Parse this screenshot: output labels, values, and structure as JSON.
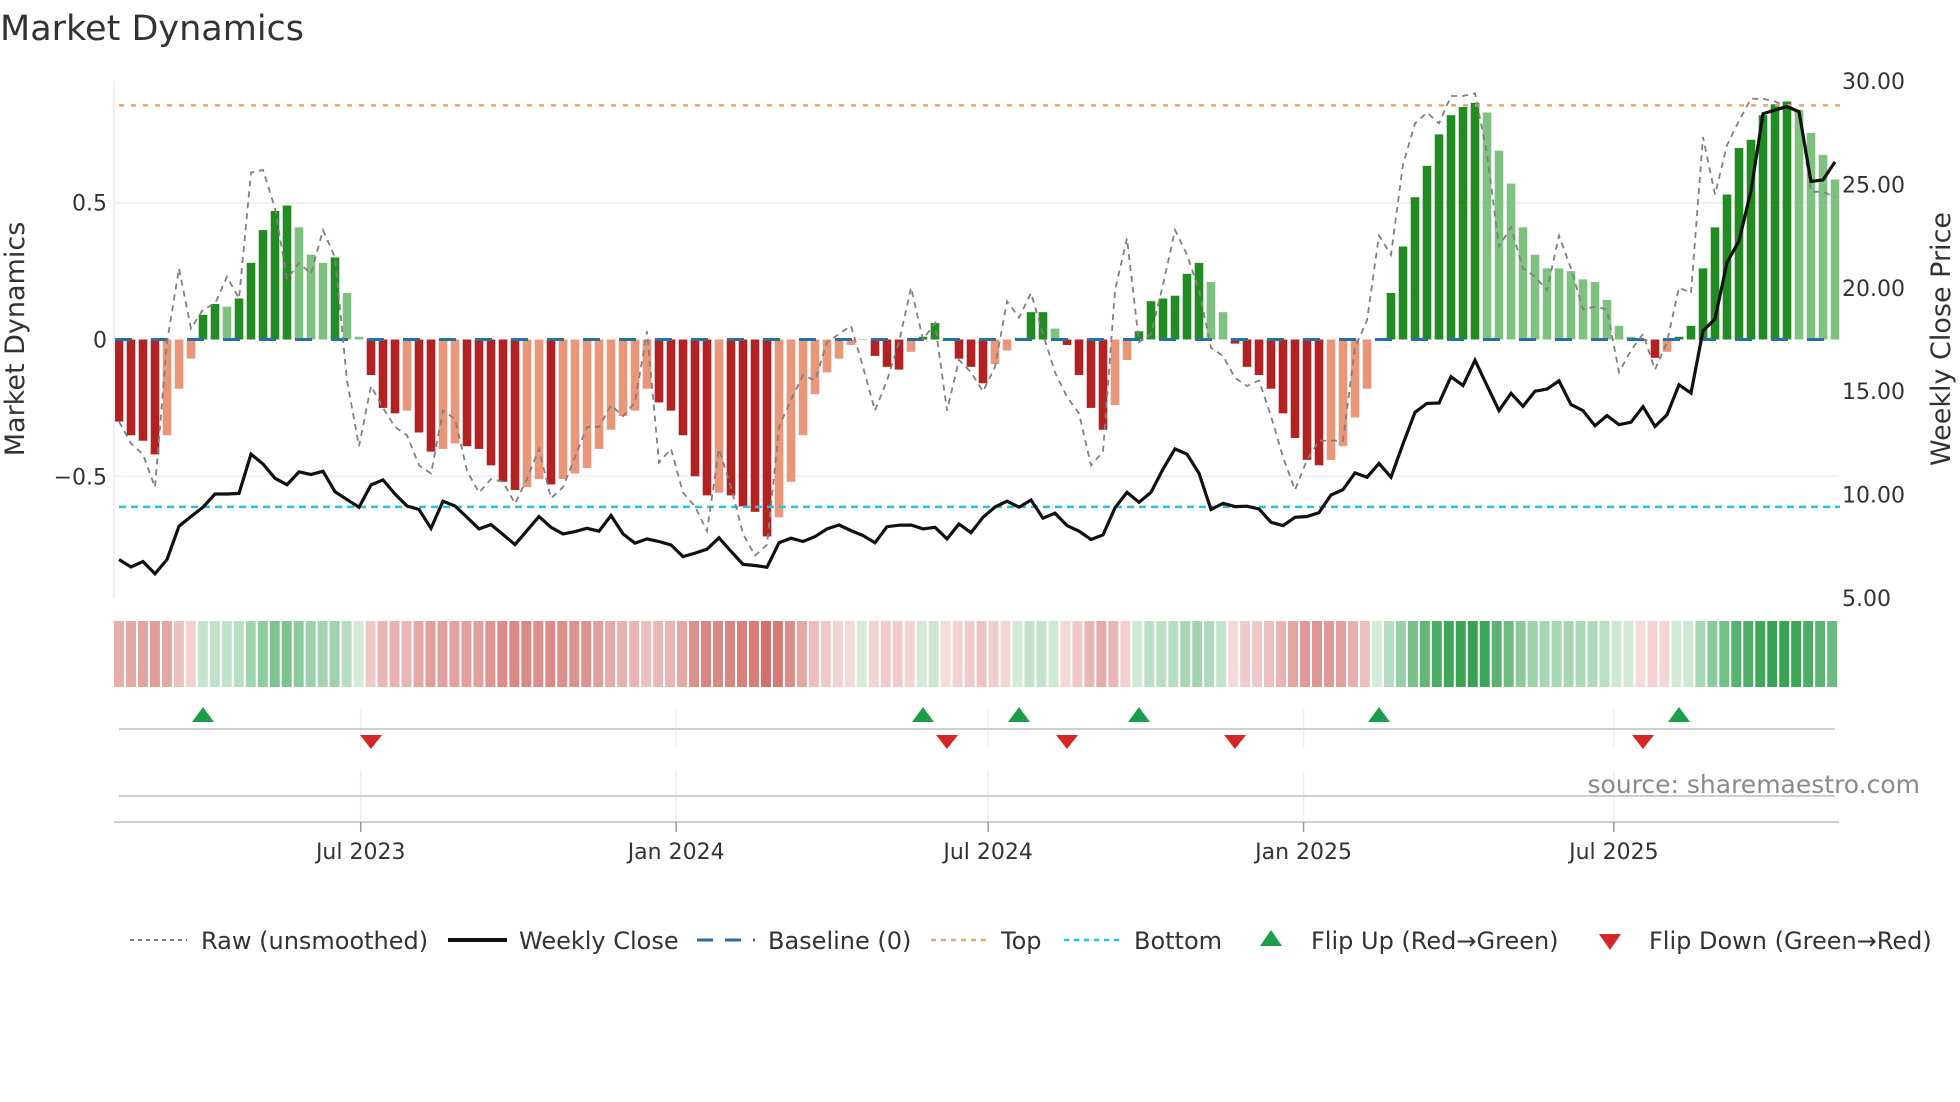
{
  "chart_data": {
    "type": "bar",
    "title": "Market Dynamics",
    "ylabel_left": "Market Dynamics",
    "ylabel_right": "Weekly Close Price",
    "start_date": "2023-02-10",
    "interval": "weekly",
    "ylim_left": [
      -0.945,
      0.945
    ],
    "ylim_right": [
      5,
      30
    ],
    "left_ticks": [
      {
        "value": 0.5,
        "label": "0.5"
      },
      {
        "value": 0,
        "label": "0"
      },
      {
        "value": -0.5,
        "label": "−0.5"
      }
    ],
    "right_ticks": [
      {
        "value": 30,
        "label": "30.00"
      },
      {
        "value": 25,
        "label": "25.00"
      },
      {
        "value": 20,
        "label": "20.00"
      },
      {
        "value": 15,
        "label": "15.00"
      },
      {
        "value": 10,
        "label": "10.00"
      },
      {
        "value": 5,
        "label": "5.00"
      }
    ],
    "x_ticks": [
      {
        "date": "2023-07-01",
        "label": "Jul 2023"
      },
      {
        "date": "2024-01-01",
        "label": "Jan 2024"
      },
      {
        "date": "2024-07-01",
        "label": "Jul 2024"
      },
      {
        "date": "2025-01-01",
        "label": "Jan 2025"
      },
      {
        "date": "2025-07-01",
        "label": "Jul 2025"
      }
    ],
    "grid": true,
    "thresholds": {
      "baseline": 0,
      "top": 0.856,
      "bottom": -0.612
    },
    "smoothed": [
      -0.3,
      -0.35,
      -0.37,
      -0.42,
      -0.35,
      -0.18,
      -0.07,
      0.09,
      0.13,
      0.12,
      0.15,
      0.28,
      0.4,
      0.47,
      0.49,
      0.41,
      0.31,
      0.28,
      0.3,
      0.17,
      0.01,
      -0.13,
      -0.25,
      -0.27,
      -0.26,
      -0.34,
      -0.41,
      -0.4,
      -0.38,
      -0.39,
      -0.4,
      -0.46,
      -0.52,
      -0.55,
      -0.54,
      -0.51,
      -0.53,
      -0.51,
      -0.49,
      -0.47,
      -0.4,
      -0.33,
      -0.28,
      -0.26,
      -0.18,
      -0.23,
      -0.26,
      -0.35,
      -0.5,
      -0.57,
      -0.56,
      -0.57,
      -0.61,
      -0.63,
      -0.72,
      -0.65,
      -0.52,
      -0.35,
      -0.2,
      -0.12,
      -0.07,
      -0.02,
      0,
      -0.06,
      -0.1,
      -0.11,
      -0.045,
      0.01,
      0.06,
      -0.005,
      -0.07,
      -0.1,
      -0.16,
      -0.09,
      -0.04,
      0.006,
      0.1,
      0.1,
      0.04,
      -0.02,
      -0.13,
      -0.25,
      -0.33,
      -0.24,
      -0.075,
      0.03,
      0.14,
      0.15,
      0.16,
      0.24,
      0.28,
      0.21,
      0.1,
      -0.015,
      -0.1,
      -0.13,
      -0.18,
      -0.27,
      -0.36,
      -0.44,
      -0.46,
      -0.44,
      -0.39,
      -0.285,
      -0.18,
      0.005,
      0.17,
      0.34,
      0.52,
      0.635,
      0.75,
      0.82,
      0.85,
      0.865,
      0.83,
      0.69,
      0.57,
      0.41,
      0.31,
      0.26,
      0.26,
      0.25,
      0.22,
      0.21,
      0.145,
      0.05,
      0.01,
      -0.005,
      -0.067,
      -0.045,
      0.01,
      0.05,
      0.26,
      0.41,
      0.53,
      0.7,
      0.73,
      0.82,
      0.86,
      0.87,
      0.84,
      0.755,
      0.675,
      0.585
    ],
    "strengthening": [
      1,
      1,
      1,
      1,
      0,
      0,
      0,
      1,
      1,
      0,
      1,
      1,
      1,
      1,
      1,
      0,
      0,
      0,
      1,
      0,
      0,
      1,
      1,
      1,
      0,
      1,
      1,
      0,
      0,
      1,
      1,
      1,
      1,
      1,
      0,
      0,
      1,
      0,
      0,
      0,
      0,
      0,
      0,
      0,
      0,
      1,
      1,
      1,
      1,
      1,
      0,
      1,
      1,
      1,
      1,
      0,
      0,
      0,
      0,
      0,
      0,
      0,
      0,
      1,
      1,
      1,
      0,
      1,
      1,
      1,
      1,
      1,
      1,
      0,
      0,
      1,
      1,
      1,
      0,
      1,
      1,
      1,
      1,
      0,
      0,
      1,
      1,
      1,
      1,
      1,
      1,
      0,
      0,
      1,
      1,
      1,
      1,
      1,
      1,
      1,
      1,
      0,
      0,
      0,
      0,
      1,
      1,
      1,
      1,
      1,
      1,
      1,
      1,
      1,
      0,
      0,
      0,
      0,
      0,
      0,
      0,
      0,
      0,
      0,
      0,
      0,
      0,
      1,
      1,
      0,
      1,
      1,
      1,
      1,
      1,
      1,
      1,
      1,
      1,
      1,
      0,
      0,
      0,
      0
    ],
    "raw": [
      -0.3,
      -0.38,
      -0.42,
      -0.54,
      -0.01,
      0.26,
      0.04,
      0.11,
      0.13,
      0.23,
      0.15,
      0.61,
      0.62,
      0.48,
      0.22,
      0.28,
      0.24,
      0.4,
      0.3,
      -0.15,
      -0.39,
      -0.17,
      -0.25,
      -0.32,
      -0.35,
      -0.46,
      -0.49,
      -0.26,
      -0.29,
      -0.48,
      -0.56,
      -0.51,
      -0.52,
      -0.6,
      -0.51,
      -0.4,
      -0.58,
      -0.54,
      -0.43,
      -0.32,
      -0.32,
      -0.24,
      -0.28,
      -0.23,
      0.03,
      -0.45,
      -0.4,
      -0.56,
      -0.61,
      -0.7,
      -0.4,
      -0.54,
      -0.71,
      -0.79,
      -0.75,
      -0.32,
      -0.22,
      -0.13,
      -0.15,
      -0.01,
      0.02,
      0.05,
      -0.1,
      -0.26,
      -0.15,
      -0.01,
      0.19,
      0.0,
      0.06,
      -0.26,
      -0.075,
      -0.12,
      -0.19,
      -0.1,
      0.14,
      0.08,
      0.17,
      0.02,
      -0.12,
      -0.21,
      -0.27,
      -0.46,
      -0.41,
      0.18,
      0.37,
      -0.01,
      0.02,
      0.2,
      0.4,
      0.31,
      0.18,
      -0.03,
      -0.06,
      -0.14,
      -0.17,
      -0.15,
      -0.28,
      -0.43,
      -0.55,
      -0.44,
      -0.37,
      -0.37,
      -0.37,
      -0.03,
      0.07,
      0.38,
      0.31,
      0.64,
      0.79,
      0.83,
      0.79,
      0.89,
      0.89,
      0.9,
      0.68,
      0.34,
      0.41,
      0.26,
      0.23,
      0.18,
      0.38,
      0.26,
      0.11,
      0.12,
      0.11,
      -0.12,
      -0.04,
      0.02,
      -0.11,
      -0.01,
      0.19,
      0.17,
      0.74,
      0.53,
      0.71,
      0.8,
      0.88,
      0.88,
      0.87,
      0.85,
      0.83,
      0.54,
      0.54,
      0.52
    ],
    "weekly_close": [
      6.86,
      6.5,
      6.76,
      6.17,
      6.86,
      8.47,
      8.94,
      9.39,
      10.03,
      10.03,
      10.06,
      11.96,
      11.48,
      10.79,
      10.48,
      11.1,
      10.97,
      11.13,
      10.14,
      9.76,
      9.39,
      10.47,
      10.71,
      10.03,
      9.45,
      9.28,
      8.37,
      9.68,
      9.45,
      8.9,
      8.34,
      8.55,
      8.07,
      7.58,
      8.26,
      8.94,
      8.42,
      8.1,
      8.21,
      8.37,
      8.23,
      8.99,
      8.1,
      7.65,
      7.86,
      7.73,
      7.57,
      7.0,
      7.17,
      7.36,
      7.91,
      7.26,
      6.63,
      6.57,
      6.49,
      7.67,
      7.89,
      7.73,
      7.97,
      8.34,
      8.53,
      8.26,
      8.02,
      7.67,
      8.45,
      8.52,
      8.53,
      8.34,
      8.42,
      7.86,
      8.58,
      8.16,
      8.9,
      9.4,
      9.68,
      9.39,
      9.74,
      8.86,
      9.1,
      8.5,
      8.23,
      7.83,
      8.05,
      9.36,
      10.11,
      9.63,
      10.11,
      11.24,
      12.21,
      11.96,
      11.03,
      9.28,
      9.58,
      9.42,
      9.44,
      9.31,
      8.66,
      8.5,
      8.9,
      8.94,
      9.13,
      9.98,
      10.24,
      11.05,
      10.84,
      11.51,
      10.84,
      12.45,
      13.98,
      14.41,
      14.43,
      15.7,
      15.27,
      16.5,
      15.27,
      14.06,
      14.9,
      14.27,
      15.0,
      15.1,
      15.5,
      14.35,
      14.06,
      13.33,
      13.82,
      13.38,
      13.5,
      14.25,
      13.3,
      13.86,
      15.31,
      14.91,
      17.92,
      18.49,
      21.22,
      22.27,
      24.69,
      28.42,
      28.6,
      28.76,
      28.52,
      25.14,
      25.22,
      26.09
    ],
    "flip_up_weeks": [
      8,
      68,
      76,
      86,
      106,
      131
    ],
    "flip_down_weeks": [
      22,
      70,
      80,
      94,
      128
    ],
    "colors": {
      "positive_strong": "#228b22",
      "positive_weak": "#80c080",
      "negative_strong": "#b22222",
      "negative_weak": "#e9967a",
      "heat_positive": "#2e9e4a",
      "heat_negative": "#c8504a",
      "raw": "#808080",
      "close": "#111111",
      "baseline": "#2471a3",
      "top": "#f4a460",
      "bottom": "#26c6da",
      "flip_up": "#1e9e4a",
      "flip_down": "#d62728"
    },
    "legend": {
      "placement": "bottom",
      "raw": "Raw (unsmoothed)",
      "close": "Weekly Close",
      "baseline": "Baseline (0)",
      "top": "Top",
      "bottom": "Bottom",
      "flip_up": "Flip Up (Red→Green)",
      "flip_down": "Flip Down (Green→Red)"
    },
    "source": "source: sharemaestro.com"
  }
}
